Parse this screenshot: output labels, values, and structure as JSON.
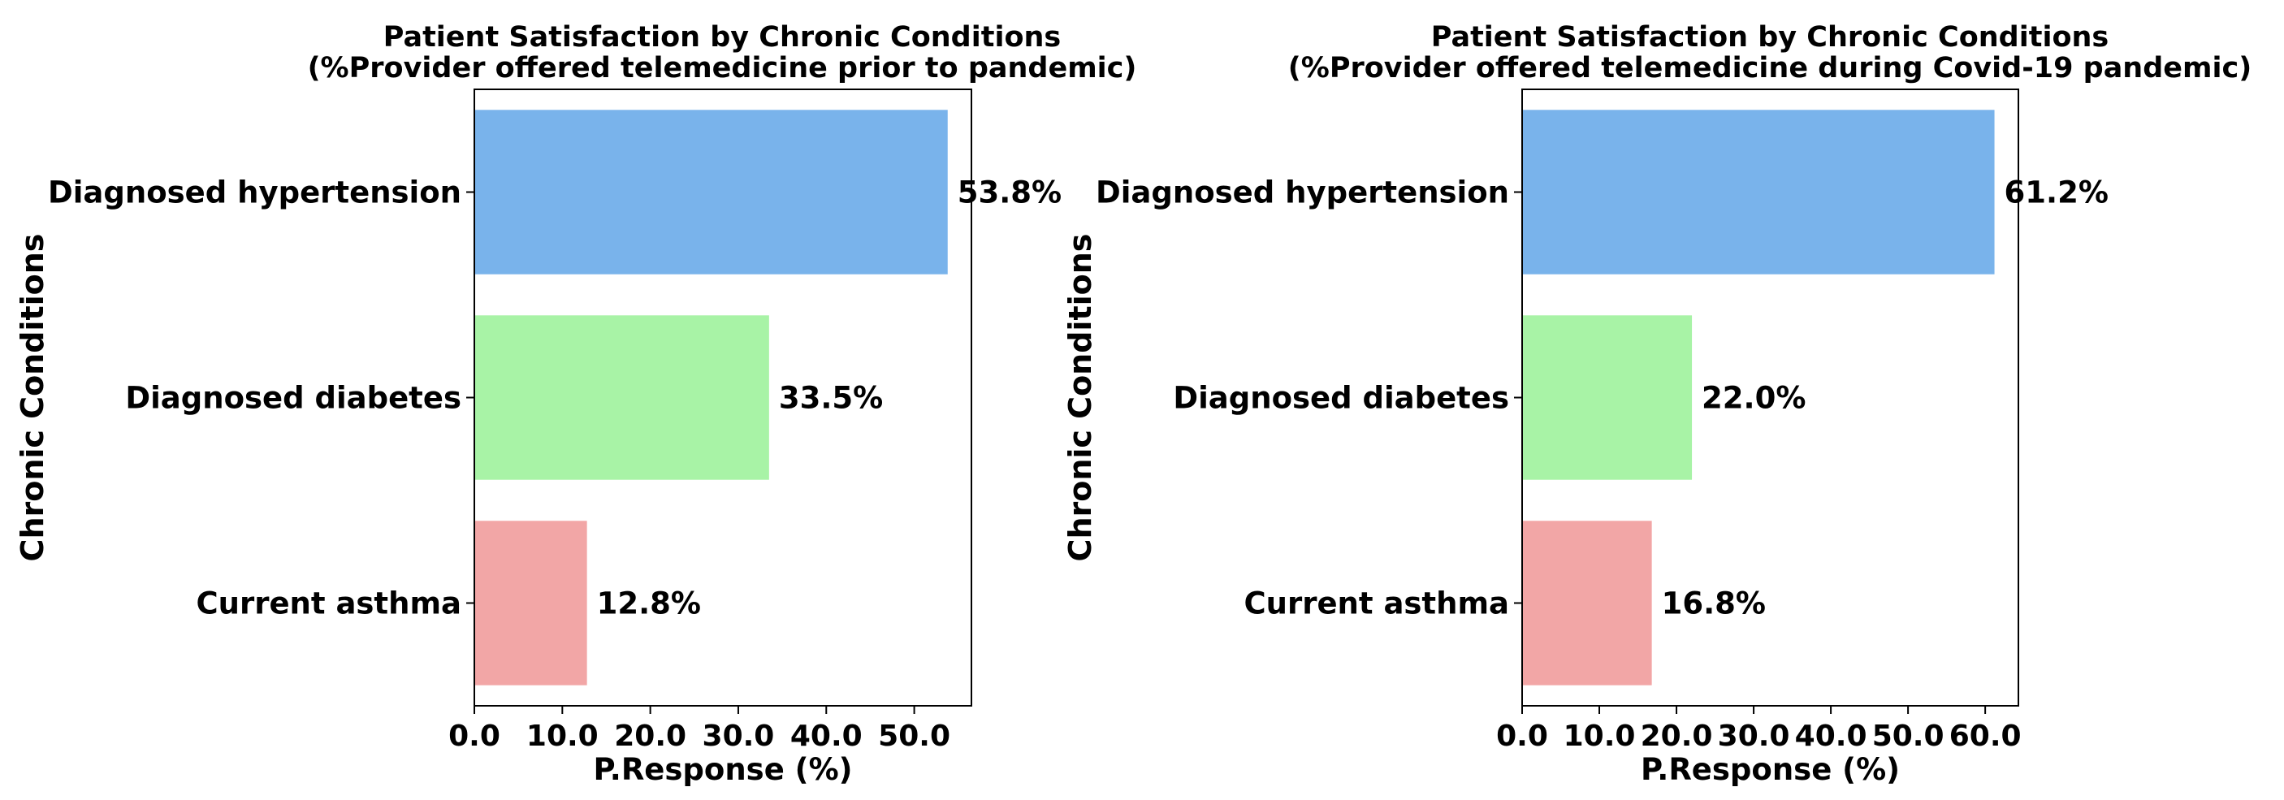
{
  "chart_data": [
    {
      "type": "bar",
      "orientation": "horizontal",
      "title_line1": "Patient Satisfaction by Chronic Conditions",
      "title_line2": "(%Provider offered telemedicine prior to pandemic)",
      "xlabel": "P.Response (%)",
      "ylabel": "Chronic Conditions",
      "categories": [
        "Diagnosed hypertension",
        "Diagnosed diabetes",
        "Current asthma"
      ],
      "values": [
        53.8,
        33.5,
        12.8
      ],
      "value_labels": [
        "53.8%",
        "33.5%",
        "12.8%"
      ],
      "colors": [
        "#79b3eb",
        "#a8f3a6",
        "#f2a6a6"
      ],
      "xlim": [
        0,
        56.5
      ],
      "xticks": [
        0,
        10,
        20,
        30,
        40,
        50
      ],
      "xtick_labels": [
        "0.0",
        "10.0",
        "20.0",
        "30.0",
        "40.0",
        "50.0"
      ],
      "grid": false
    },
    {
      "type": "bar",
      "orientation": "horizontal",
      "title_line1": "Patient Satisfaction by Chronic Conditions",
      "title_line2": "(%Provider offered telemedicine during Covid-19 pandemic)",
      "xlabel": "P.Response (%)",
      "ylabel": "Chronic Conditions",
      "categories": [
        "Diagnosed hypertension",
        "Diagnosed diabetes",
        "Current asthma"
      ],
      "values": [
        61.2,
        22.0,
        16.8
      ],
      "value_labels": [
        "61.2%",
        "22.0%",
        "16.8%"
      ],
      "colors": [
        "#79b3eb",
        "#a8f3a6",
        "#f2a6a6"
      ],
      "xlim": [
        0,
        64.3
      ],
      "xticks": [
        0,
        10,
        20,
        30,
        40,
        50,
        60
      ],
      "xtick_labels": [
        "0.0",
        "10.0",
        "20.0",
        "30.0",
        "40.0",
        "50.0",
        "60.0"
      ],
      "grid": false
    }
  ]
}
